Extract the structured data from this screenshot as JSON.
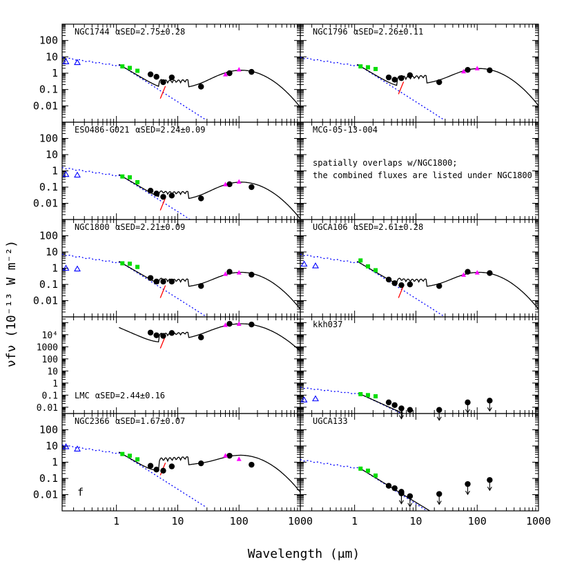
{
  "figure": {
    "y_axis_label": "νfν (10⁻¹³ W m⁻²)",
    "x_axis_label": "Wavelength (μm)",
    "panel_letter": "f",
    "x_tick_labels": [
      "1",
      "10",
      "100",
      "1000"
    ],
    "y_tick_labels": [
      "100",
      "10",
      "1",
      "0.1",
      "0.01"
    ],
    "lmc_y_tick_labels": [
      "10⁴",
      "1000",
      "100",
      "10",
      "1",
      "0.1",
      "0.01"
    ],
    "colors": {
      "model": "#000000",
      "stellar": "#0000ff",
      "pah": "#8b0000",
      "nir": "#00dd00",
      "mips": "#000000",
      "iras": "#ff00ff",
      "uv": "#0000ff",
      "pah_tail": "#ff0000"
    }
  },
  "chart_data": [
    {
      "type": "scatter",
      "galaxy": "NGC1744",
      "alpha_text": "αSED=2.75±0.28",
      "xlim": [
        0.13,
        1000
      ],
      "ylim": [
        0.001,
        1000
      ],
      "log": true,
      "uv": [
        [
          0.15,
          5
        ],
        [
          0.23,
          4.5
        ]
      ],
      "nir": [
        [
          1.25,
          2.6
        ],
        [
          1.65,
          2.1
        ],
        [
          2.2,
          1.4
        ]
      ],
      "mips": [
        [
          3.6,
          0.85
        ],
        [
          4.5,
          0.6
        ],
        [
          5.8,
          0.28
        ],
        [
          8.0,
          0.55
        ],
        [
          24,
          0.15
        ],
        [
          70,
          1.0
        ],
        [
          160,
          1.2
        ]
      ],
      "iras": [
        [
          60,
          0.85
        ],
        [
          100,
          1.7
        ]
      ],
      "model_peak": 1.5,
      "stellar_norm": 2.6
    },
    {
      "type": "scatter",
      "galaxy": "NGC1796",
      "alpha_text": "αSED=2.26±0.11",
      "xlim": [
        0.13,
        1000
      ],
      "ylim": [
        0.001,
        1000
      ],
      "log": true,
      "uv": [],
      "nir": [
        [
          1.25,
          2.6
        ],
        [
          1.65,
          2.3
        ],
        [
          2.2,
          1.8
        ]
      ],
      "mips": [
        [
          3.6,
          0.55
        ],
        [
          4.5,
          0.4
        ],
        [
          5.8,
          0.5
        ],
        [
          8.0,
          0.75
        ],
        [
          24,
          0.28
        ],
        [
          70,
          1.6
        ],
        [
          160,
          1.5
        ]
      ],
      "iras": [
        [
          60,
          1.3
        ],
        [
          100,
          2.0
        ]
      ],
      "model_peak": 1.9,
      "stellar_norm": 2.6
    },
    {
      "type": "scatter",
      "galaxy": "ESO486-G021",
      "alpha_text": "αSED=2.24±0.09",
      "xlim": [
        0.13,
        1000
      ],
      "ylim": [
        0.001,
        1000
      ],
      "log": true,
      "uv": [
        [
          0.15,
          0.6
        ],
        [
          0.23,
          0.55
        ]
      ],
      "nir": [
        [
          1.25,
          0.45
        ],
        [
          1.65,
          0.4
        ],
        [
          2.2,
          0.2
        ]
      ],
      "mips": [
        [
          3.6,
          0.06
        ],
        [
          4.5,
          0.04
        ],
        [
          5.8,
          0.025
        ],
        [
          8.0,
          0.03
        ],
        [
          24,
          0.02
        ],
        [
          70,
          0.15
        ],
        [
          160,
          0.1
        ]
      ],
      "iras": [
        [
          60,
          0.15
        ],
        [
          100,
          0.22
        ]
      ],
      "model_peak": 0.2,
      "stellar_norm": 0.45
    },
    {
      "type": "table",
      "galaxy": "MCG-05-13-004",
      "note_line1": "spatially overlaps w/NGC1800;",
      "note_line2": "the combined fluxes are listed under NGC1800"
    },
    {
      "type": "scatter",
      "galaxy": "NGC1800",
      "alpha_text": "αSED=2.21±0.09",
      "xlim": [
        0.13,
        1000
      ],
      "ylim": [
        0.001,
        1000
      ],
      "log": true,
      "uv": [
        [
          0.15,
          1.0
        ],
        [
          0.23,
          0.9
        ]
      ],
      "nir": [
        [
          1.25,
          2.0
        ],
        [
          1.65,
          1.9
        ],
        [
          2.2,
          1.2
        ]
      ],
      "mips": [
        [
          3.6,
          0.25
        ],
        [
          4.5,
          0.15
        ],
        [
          5.8,
          0.15
        ],
        [
          8.0,
          0.15
        ],
        [
          24,
          0.08
        ],
        [
          70,
          0.6
        ],
        [
          160,
          0.4
        ]
      ],
      "iras": [
        [
          60,
          0.45
        ],
        [
          100,
          0.55
        ]
      ],
      "model_peak": 0.55,
      "stellar_norm": 2.0
    },
    {
      "type": "scatter",
      "galaxy": "UGCA106",
      "alpha_text": "αSED=2.61±0.28",
      "xlim": [
        0.13,
        1000
      ],
      "ylim": [
        0.001,
        1000
      ],
      "log": true,
      "uv": [
        [
          0.15,
          1.8
        ],
        [
          0.23,
          1.4
        ]
      ],
      "nir": [
        [
          1.25,
          3.0
        ],
        [
          1.65,
          1.3
        ],
        [
          2.2,
          0.75
        ]
      ],
      "mips": [
        [
          3.6,
          0.2
        ],
        [
          4.5,
          0.12
        ],
        [
          5.8,
          0.09
        ],
        [
          8.0,
          0.1
        ],
        [
          24,
          0.08
        ],
        [
          70,
          0.6
        ],
        [
          160,
          0.5
        ]
      ],
      "iras": [
        [
          60,
          0.4
        ],
        [
          100,
          0.55
        ]
      ],
      "model_peak": 0.55,
      "stellar_norm": 2.0
    },
    {
      "type": "scatter",
      "galaxy": "LMC",
      "alpha_text": "αSED=2.44±0.16",
      "xlim": [
        0.13,
        1000
      ],
      "ylim": [
        0.003,
        300000
      ],
      "log": true,
      "uv": [],
      "nir": [],
      "mips": [
        [
          3.6,
          15000
        ],
        [
          4.5,
          9000
        ],
        [
          5.8,
          8000
        ],
        [
          8.0,
          14000
        ],
        [
          24,
          6000
        ],
        [
          70,
          80000
        ],
        [
          160,
          70000
        ]
      ],
      "iras": [
        [
          60,
          65000
        ],
        [
          100,
          80000
        ]
      ],
      "model_peak": 80000,
      "stellar_norm": 0
    },
    {
      "type": "scatter",
      "galaxy": "kkh037",
      "alpha_text": "",
      "xlim": [
        0.13,
        1000
      ],
      "ylim": [
        0.003,
        300000
      ],
      "log": true,
      "uv": [
        [
          0.15,
          0.04
        ],
        [
          0.23,
          0.05
        ]
      ],
      "nir": [
        [
          1.25,
          0.12
        ],
        [
          1.65,
          0.1
        ],
        [
          2.2,
          0.08
        ]
      ],
      "mips": [
        [
          3.6,
          0.025
        ],
        [
          4.5,
          0.015
        ],
        [
          5.8,
          0.008
        ],
        [
          8.0,
          0.006
        ]
      ],
      "upper_limits": [
        [
          5.8,
          0.008
        ],
        [
          24,
          0.006
        ],
        [
          70,
          0.025
        ],
        [
          160,
          0.035
        ]
      ],
      "iras": [],
      "model_peak": 0,
      "stellar_norm": 0.12
    },
    {
      "type": "scatter",
      "galaxy": "NGC2366",
      "alpha_text": "αSED=1.67±0.07",
      "xlim": [
        0.13,
        1000
      ],
      "ylim": [
        0.001,
        1000
      ],
      "log": true,
      "uv": [
        [
          0.15,
          9
        ],
        [
          0.23,
          6.5
        ]
      ],
      "nir": [
        [
          1.25,
          3.2
        ],
        [
          1.65,
          2.5
        ],
        [
          2.2,
          1.5
        ]
      ],
      "mips": [
        [
          3.6,
          0.6
        ],
        [
          4.5,
          0.35
        ],
        [
          5.8,
          0.3
        ],
        [
          8.0,
          0.55
        ],
        [
          24,
          0.85
        ],
        [
          70,
          2.5
        ],
        [
          160,
          0.7
        ]
      ],
      "iras": [
        [
          60,
          2.6
        ],
        [
          100,
          1.6
        ]
      ],
      "model_peak": 2.6,
      "stellar_norm": 3.2
    },
    {
      "type": "scatter",
      "galaxy": "UGCA133",
      "alpha_text": "",
      "xlim": [
        0.13,
        1000
      ],
      "ylim": [
        0.001,
        1000
      ],
      "log": true,
      "uv": [],
      "nir": [
        [
          1.25,
          0.4
        ],
        [
          1.65,
          0.3
        ],
        [
          2.2,
          0.15
        ]
      ],
      "mips": [
        [
          3.6,
          0.035
        ],
        [
          4.5,
          0.025
        ],
        [
          5.8,
          0.015
        ],
        [
          8.0,
          0.008
        ]
      ],
      "upper_limits": [
        [
          5.8,
          0.012
        ],
        [
          8.0,
          0.008
        ],
        [
          24,
          0.011
        ],
        [
          70,
          0.045
        ],
        [
          160,
          0.08
        ]
      ],
      "iras": [],
      "model_peak": 0,
      "stellar_norm": 0.4
    }
  ]
}
